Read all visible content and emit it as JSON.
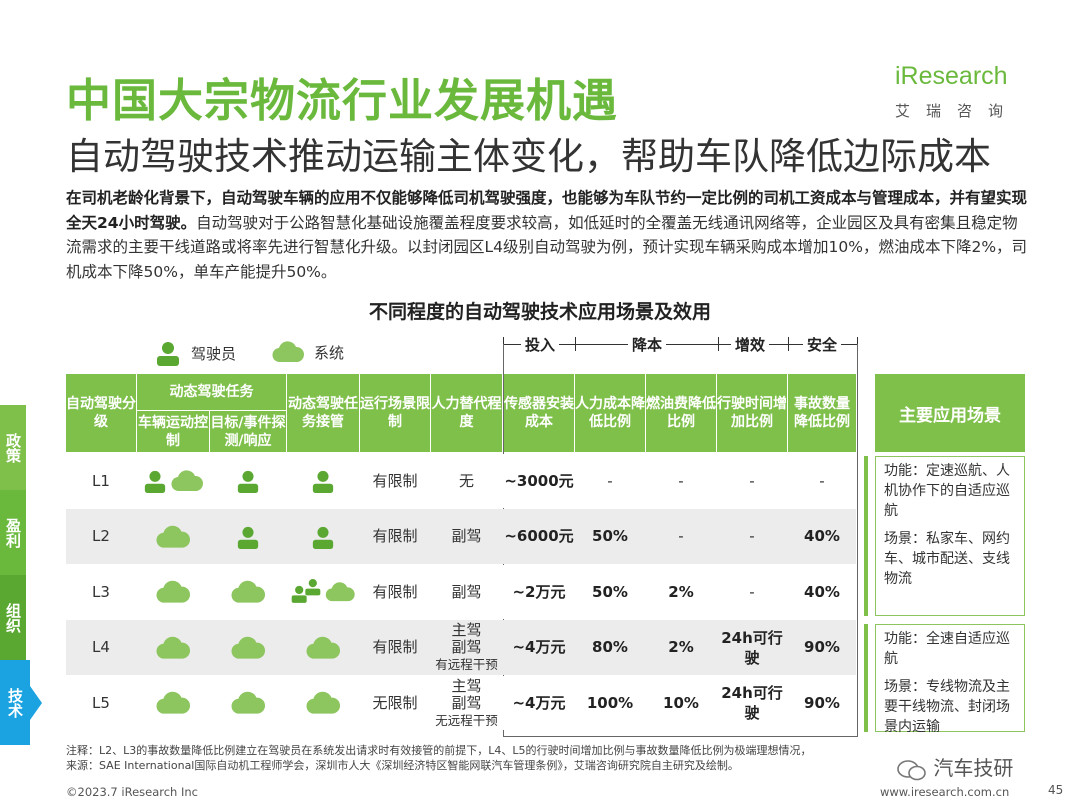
{
  "title": "中国大宗物流行业发展机遇",
  "subtitle": "自动驾驶技术推动运输主体变化，帮助车队降低边际成本",
  "logo": {
    "brand": "iResearch",
    "cn": "艾瑞咨询"
  },
  "paragraph": {
    "bold": "在司机老龄化背景下，自动驾驶车辆的应用不仅能够降低司机驾驶强度，也能够为车队节约一定比例的司机工资成本与管理成本，并有望实现全天24小时驾驶。",
    "normal": "自动驾驶对于公路智慧化基础设施覆盖程度要求较高，如低延时的全覆盖无线通讯网络等，企业园区及具有密集且稳定物流需求的主要干线道路或将率先进行智慧化升级。以封闭园区L4级别自动驾驶为例，预计实现车辆采购成本增加10%，燃油成本下降2%，司机成本下降50%，单车产能提升50%。"
  },
  "table_title": "不同程度的自动驾驶技术应用场景及效用",
  "side_tabs": [
    "政策",
    "盈利",
    "组织",
    "技术"
  ],
  "legend": {
    "driver": "驾驶员",
    "system": "系统"
  },
  "group_labels": {
    "invest": "投入",
    "reduce": "降本",
    "efficiency": "增效",
    "safety": "安全"
  },
  "headers": {
    "level": "自动驾驶分级",
    "dynamic_task": "动态驾驶任务",
    "motion": "车辆运动控制",
    "detect": "目标/事件探测/响应",
    "takeover": "动态驾驶任务接管",
    "scene": "运行场景限制",
    "replace": "人力替代程度",
    "sensor": "传感器安装成本",
    "labor": "人力成本降低比例",
    "fuel": "燃油费降低比例",
    "time": "行驶时间增加比例",
    "accident": "事故数量降低比例",
    "apps": "主要应用场景"
  },
  "rows": [
    {
      "level": "L1",
      "motion": [
        "driver",
        "system"
      ],
      "detect": [
        "driver"
      ],
      "takeover": [
        "driver"
      ],
      "scene": "有限制",
      "replace": [
        "无"
      ],
      "sensor": "~3000元",
      "labor": "-",
      "fuel": "-",
      "time": "-",
      "accident": "-"
    },
    {
      "level": "L2",
      "motion": [
        "system"
      ],
      "detect": [
        "driver"
      ],
      "takeover": [
        "driver"
      ],
      "scene": "有限制",
      "replace": [
        "副驾"
      ],
      "sensor": "~6000元",
      "labor": "50%",
      "fuel": "-",
      "time": "-",
      "accident": "40%"
    },
    {
      "level": "L3",
      "motion": [
        "system"
      ],
      "detect": [
        "system"
      ],
      "takeover": [
        "driver",
        "system"
      ],
      "scene": "有限制",
      "replace": [
        "副驾"
      ],
      "sensor": "~2万元",
      "labor": "50%",
      "fuel": "2%",
      "time": "-",
      "accident": "40%"
    },
    {
      "level": "L4",
      "motion": [
        "system"
      ],
      "detect": [
        "system"
      ],
      "takeover": [
        "system"
      ],
      "scene": "有限制",
      "replace": [
        "主驾",
        "副驾",
        "有远程干预"
      ],
      "sensor": "~4万元",
      "labor": "80%",
      "fuel": "2%",
      "time": "24h可行驶",
      "accident": "90%"
    },
    {
      "level": "L5",
      "motion": [
        "system"
      ],
      "detect": [
        "system"
      ],
      "takeover": [
        "system"
      ],
      "scene": "无限制",
      "replace": [
        "主驾",
        "副驾",
        "无远程干预"
      ],
      "sensor": "~4万元",
      "labor": "100%",
      "fuel": "10%",
      "time": "24h可行驶",
      "accident": "90%"
    }
  ],
  "apps": [
    {
      "func": "功能：定速巡航、人机协作下的自适应巡航",
      "scene": "场景：私家车、网约车、城市配送、支线物流"
    },
    {
      "func": "功能：全速自适应巡航",
      "scene": "场景：专线物流及主要干线物流、封闭场景内运输"
    }
  ],
  "note": "注释：L2、L3的事故数量降低比例建立在驾驶员在系统发出请求时有效接管的前提下，L4、L5的行驶时间增加比例与事故数量降低比例为极端理想情况，",
  "source": "来源：SAE International国际自动机工程师学会，深圳市人大《深圳经济特区智能网联汽车管理条例》，艾瑞咨询研究院自主研究及绘制。",
  "watermark": "汽车技研",
  "footer_left": "©2023.7 iResearch Inc",
  "footer_right": "www.iresearch.com.cn",
  "page_number": "45",
  "colors": {
    "accent": "#7fc04b",
    "title": "#6ab93d",
    "icon": "#5aa832",
    "tabs": [
      "#7fc04b",
      "#6ab93d",
      "#5aa832",
      "#1aa3e0"
    ]
  }
}
